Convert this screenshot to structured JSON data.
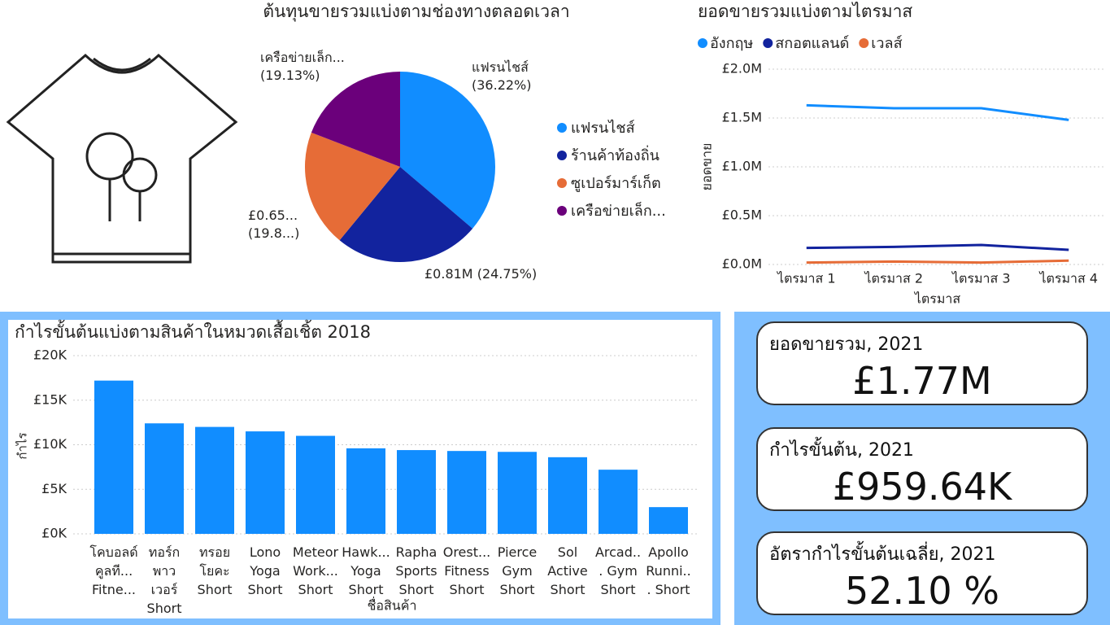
{
  "chart_data": [
    {
      "type": "pie",
      "title": "ต้นทุนขายรวมแบ่งตามช่องทางตลอดเวลา",
      "categories": [
        "แฟรนไชส์",
        "ร้านค้าท้องถิ่น",
        "ซูเปอร์มาร์เก็ต",
        "เครือข่ายเล็ก..."
      ],
      "values": [
        36.22,
        24.75,
        19.9,
        19.13
      ],
      "value_labels": [
        "แฟรนไชส์\n(36.22%)",
        "£0.81M (24.75%)",
        "£0.65...\n(19.8...)",
        "เครือข่ายเล็ก...\n(19.13%)"
      ],
      "colors": [
        "#118DFF",
        "#12239E",
        "#E66C37",
        "#6B007B"
      ]
    },
    {
      "type": "line",
      "title": "ยอดขายรวมแบ่งตามไตรมาส",
      "xlabel": "ไตรมาส",
      "ylabel": "ยอดขาย",
      "categories": [
        "ไตรมาส 1",
        "ไตรมาส 2",
        "ไตรมาส 3",
        "ไตรมาส 4"
      ],
      "series": [
        {
          "name": "อังกฤษ",
          "color": "#118DFF",
          "values": [
            1630000,
            1600000,
            1600000,
            1480000
          ]
        },
        {
          "name": "สกอตแลนด์",
          "color": "#12239E",
          "values": [
            170000,
            180000,
            200000,
            150000
          ]
        },
        {
          "name": "เวลส์",
          "color": "#E66C37",
          "values": [
            20000,
            30000,
            20000,
            40000
          ]
        }
      ],
      "ylim": [
        0,
        2000000
      ],
      "yticks": [
        {
          "value": 0,
          "label": "£0.0M"
        },
        {
          "value": 500000,
          "label": "£0.5M"
        },
        {
          "value": 1000000,
          "label": "£1.0M"
        },
        {
          "value": 1500000,
          "label": "£1.5M"
        },
        {
          "value": 2000000,
          "label": "£2.0M"
        }
      ],
      "grid": true
    },
    {
      "type": "bar",
      "title": "กำไรขั้นต้นแบ่งตามสินค้าในหมวดเสื้อเชิ้ต 2018",
      "xlabel": "ชื่อสินค้า",
      "ylabel": "กำไร",
      "categories": [
        "โคบอลด์ คูลที... Fitne...",
        "ทอร์ก พาวเวอร์ Short",
        "ทรอย โยคะ Short",
        "Lono Yoga Short",
        "Meteor Work... Short",
        "Hawk... Yoga Short",
        "Rapha Sports Short",
        "Orest... Fitness Short",
        "Pierce Gym Short",
        "Sol Active Short",
        "Arcad... Gym Short",
        "Apollo Runni... Short"
      ],
      "values": [
        17200,
        12400,
        12000,
        11500,
        11000,
        9600,
        9400,
        9300,
        9200,
        8600,
        7200,
        3000
      ],
      "color": "#118DFF",
      "ylim": [
        0,
        20000
      ],
      "yticks": [
        {
          "value": 0,
          "label": "£0K"
        },
        {
          "value": 5000,
          "label": "£5K"
        },
        {
          "value": 10000,
          "label": "£10K"
        },
        {
          "value": 15000,
          "label": "£15K"
        },
        {
          "value": 20000,
          "label": "£20K"
        }
      ],
      "grid": true
    }
  ],
  "cards": [
    {
      "title": "ยอดขายรวม, 2021",
      "value": "£1.77M"
    },
    {
      "title": "กำไรขั้นต้น, 2021",
      "value": "£959.64K"
    },
    {
      "title": "อัตรากำไรขั้นต้นเฉลี่ย, 2021",
      "value": "52.10 %"
    }
  ]
}
